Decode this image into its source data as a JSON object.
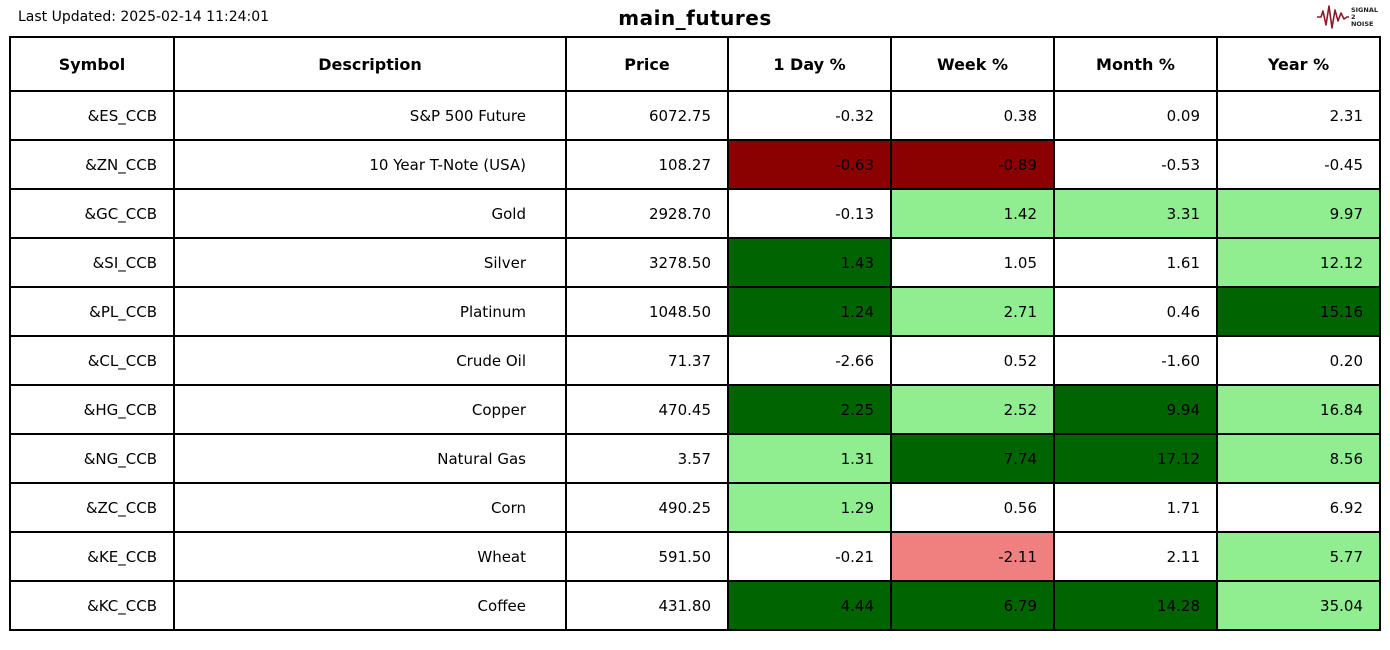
{
  "header": {
    "last_updated": "Last Updated: 2025-02-14 11:24:01",
    "title": "main_futures",
    "logo_lines": [
      "SIGNAL",
      "2",
      "NOISE"
    ]
  },
  "colors": {
    "dark_green": "#006400",
    "light_green": "#90EE90",
    "dark_red": "#8B0000",
    "light_red": "#F08080",
    "logo_red": "#8B1A2B",
    "border": "#000000"
  },
  "chart_data": {
    "type": "table",
    "title": "main_futures",
    "last_updated": "2025-02-14 11:24:01",
    "columns": [
      "Symbol",
      "Description",
      "Price",
      "1 Day %",
      "Week %",
      "Month %",
      "Year %"
    ],
    "rows": [
      {
        "symbol": "&ES_CCB",
        "description": "S&P 500 Future",
        "price": "6072.75",
        "pcts": [
          {
            "value": "-0.32",
            "bg": "none"
          },
          {
            "value": "0.38",
            "bg": "none"
          },
          {
            "value": "0.09",
            "bg": "none"
          },
          {
            "value": "2.31",
            "bg": "none"
          }
        ]
      },
      {
        "symbol": "&ZN_CCB",
        "description": "10 Year T-Note (USA)",
        "price": "108.27",
        "pcts": [
          {
            "value": "-0.63",
            "bg": "dark-red"
          },
          {
            "value": "-0.89",
            "bg": "dark-red"
          },
          {
            "value": "-0.53",
            "bg": "none"
          },
          {
            "value": "-0.45",
            "bg": "none"
          }
        ]
      },
      {
        "symbol": "&GC_CCB",
        "description": "Gold",
        "price": "2928.70",
        "pcts": [
          {
            "value": "-0.13",
            "bg": "none"
          },
          {
            "value": "1.42",
            "bg": "light-green"
          },
          {
            "value": "3.31",
            "bg": "light-green"
          },
          {
            "value": "9.97",
            "bg": "light-green"
          }
        ]
      },
      {
        "symbol": "&SI_CCB",
        "description": "Silver",
        "price": "3278.50",
        "pcts": [
          {
            "value": "1.43",
            "bg": "dark-green"
          },
          {
            "value": "1.05",
            "bg": "none"
          },
          {
            "value": "1.61",
            "bg": "none"
          },
          {
            "value": "12.12",
            "bg": "light-green"
          }
        ]
      },
      {
        "symbol": "&PL_CCB",
        "description": "Platinum",
        "price": "1048.50",
        "pcts": [
          {
            "value": "1.24",
            "bg": "dark-green"
          },
          {
            "value": "2.71",
            "bg": "light-green"
          },
          {
            "value": "0.46",
            "bg": "none"
          },
          {
            "value": "15.16",
            "bg": "dark-green"
          }
        ]
      },
      {
        "symbol": "&CL_CCB",
        "description": "Crude Oil",
        "price": "71.37",
        "pcts": [
          {
            "value": "-2.66",
            "bg": "none"
          },
          {
            "value": "0.52",
            "bg": "none"
          },
          {
            "value": "-1.60",
            "bg": "none"
          },
          {
            "value": "0.20",
            "bg": "none"
          }
        ]
      },
      {
        "symbol": "&HG_CCB",
        "description": "Copper",
        "price": "470.45",
        "pcts": [
          {
            "value": "2.25",
            "bg": "dark-green"
          },
          {
            "value": "2.52",
            "bg": "light-green"
          },
          {
            "value": "9.94",
            "bg": "dark-green"
          },
          {
            "value": "16.84",
            "bg": "light-green"
          }
        ]
      },
      {
        "symbol": "&NG_CCB",
        "description": "Natural Gas",
        "price": "3.57",
        "pcts": [
          {
            "value": "1.31",
            "bg": "light-green"
          },
          {
            "value": "7.74",
            "bg": "dark-green"
          },
          {
            "value": "17.12",
            "bg": "dark-green"
          },
          {
            "value": "8.56",
            "bg": "light-green"
          }
        ]
      },
      {
        "symbol": "&ZC_CCB",
        "description": "Corn",
        "price": "490.25",
        "pcts": [
          {
            "value": "1.29",
            "bg": "light-green"
          },
          {
            "value": "0.56",
            "bg": "none"
          },
          {
            "value": "1.71",
            "bg": "none"
          },
          {
            "value": "6.92",
            "bg": "none"
          }
        ]
      },
      {
        "symbol": "&KE_CCB",
        "description": "Wheat",
        "price": "591.50",
        "pcts": [
          {
            "value": "-0.21",
            "bg": "none"
          },
          {
            "value": "-2.11",
            "bg": "light-red"
          },
          {
            "value": "2.11",
            "bg": "none"
          },
          {
            "value": "5.77",
            "bg": "light-green"
          }
        ]
      },
      {
        "symbol": "&KC_CCB",
        "description": "Coffee",
        "price": "431.80",
        "pcts": [
          {
            "value": "4.44",
            "bg": "dark-green"
          },
          {
            "value": "6.79",
            "bg": "dark-green"
          },
          {
            "value": "14.28",
            "bg": "dark-green"
          },
          {
            "value": "35.04",
            "bg": "light-green"
          }
        ]
      }
    ]
  }
}
